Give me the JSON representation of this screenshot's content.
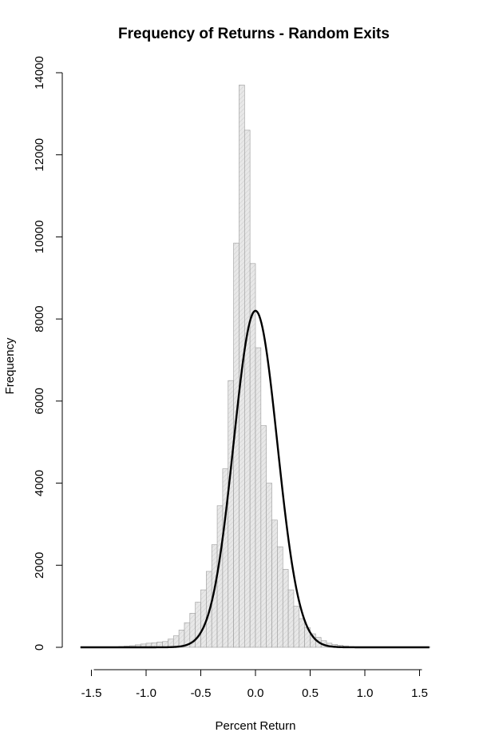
{
  "chart_data": {
    "type": "bar",
    "title": "Frequency of Returns - Random Exits",
    "xlabel": "Percent Return",
    "ylabel": "Frequency",
    "xlim": [
      -1.6,
      1.6
    ],
    "ylim": [
      0,
      14000
    ],
    "x_ticks": [
      -1.5,
      -1.0,
      -0.5,
      0.0,
      0.5,
      1.0,
      1.5
    ],
    "x_tick_labels": [
      "-1.5",
      "-1.0",
      "-0.5",
      "0.0",
      "0.5",
      "1.0",
      "1.5"
    ],
    "y_ticks": [
      0,
      2000,
      4000,
      6000,
      8000,
      10000,
      12000,
      14000
    ],
    "y_tick_labels": [
      "0",
      "2000",
      "4000",
      "6000",
      "8000",
      "10000",
      "12000",
      "14000"
    ],
    "bin_width": 0.05,
    "bins_start": [
      -1.6,
      -1.55,
      -1.5,
      -1.45,
      -1.4,
      -1.35,
      -1.3,
      -1.25,
      -1.2,
      -1.15,
      -1.1,
      -1.05,
      -1.0,
      -0.95,
      -0.9,
      -0.85,
      -0.8,
      -0.75,
      -0.7,
      -0.65,
      -0.6,
      -0.55,
      -0.5,
      -0.45,
      -0.4,
      -0.35,
      -0.3,
      -0.25,
      -0.2,
      -0.15,
      -0.1,
      -0.05,
      0.0,
      0.05,
      0.1,
      0.15,
      0.2,
      0.25,
      0.3,
      0.35,
      0.4,
      0.45,
      0.5,
      0.55,
      0.6,
      0.65,
      0.7,
      0.75,
      0.8,
      0.85,
      0.9,
      0.95,
      1.0,
      1.05,
      1.1,
      1.15,
      1.2,
      1.25,
      1.3,
      1.35,
      1.4,
      1.45,
      1.5,
      1.55
    ],
    "counts": [
      5,
      5,
      5,
      5,
      5,
      10,
      10,
      20,
      30,
      40,
      60,
      80,
      100,
      110,
      130,
      140,
      200,
      280,
      420,
      600,
      830,
      1100,
      1400,
      1850,
      2500,
      3450,
      4350,
      6500,
      9850,
      13700,
      12600,
      9350,
      7300,
      5400,
      4000,
      3100,
      2450,
      1900,
      1400,
      1000,
      700,
      480,
      330,
      240,
      160,
      100,
      70,
      50,
      35,
      20,
      15,
      10,
      10,
      5,
      5,
      5,
      5,
      5,
      5,
      5,
      5,
      5,
      5,
      5
    ],
    "series": [
      {
        "type": "histogram",
        "bar_fill": "#e4e4e4",
        "bar_stroke": "#9a9a9a"
      },
      {
        "type": "line",
        "stroke": "#000000",
        "mean": 0.0,
        "sd": 0.2,
        "peak": 8200
      }
    ],
    "grid": false,
    "legend": "none"
  }
}
